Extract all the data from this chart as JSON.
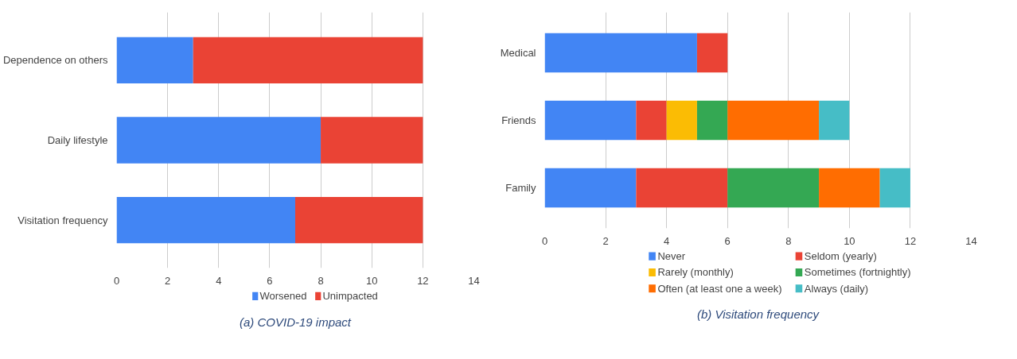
{
  "chart_data": [
    {
      "type": "bar",
      "orientation": "horizontal",
      "stacked": true,
      "categories": [
        "Dependence on others",
        "Daily lifestyle",
        "Visitation frequency"
      ],
      "series": [
        {
          "name": "Worsened",
          "color": "#4285f4",
          "values": [
            3,
            8,
            7
          ]
        },
        {
          "name": "Unimpacted",
          "color": "#ea4335",
          "values": [
            9,
            4,
            5
          ]
        }
      ],
      "xlim": [
        0,
        14
      ],
      "xticks": [
        0,
        2,
        4,
        6,
        8,
        10,
        12,
        14
      ],
      "grid": "x",
      "legend": "bottom",
      "annotations": [
        "(a) COVID-19 impact"
      ]
    },
    {
      "type": "bar",
      "orientation": "horizontal",
      "stacked": true,
      "categories": [
        "Medical",
        "Friends",
        "Family"
      ],
      "series": [
        {
          "name": "Never",
          "color": "#4285f4",
          "values": [
            5,
            3,
            3
          ]
        },
        {
          "name": "Seldom (yearly)",
          "color": "#ea4335",
          "values": [
            1,
            1,
            3
          ]
        },
        {
          "name": "Rarely (monthly)",
          "color": "#fbbc04",
          "values": [
            0,
            1,
            0
          ]
        },
        {
          "name": "Sometimes (fortnightly)",
          "color": "#34a853",
          "values": [
            0,
            1,
            3
          ]
        },
        {
          "name": "Often (at least one a week)",
          "color": "#ff6d01",
          "values": [
            0,
            3,
            2
          ]
        },
        {
          "name": "Always (daily)",
          "color": "#46bdc6",
          "values": [
            0,
            1,
            1
          ]
        }
      ],
      "xlim": [
        0,
        14
      ],
      "xticks": [
        0,
        2,
        4,
        6,
        8,
        10,
        12,
        14
      ],
      "grid": "x",
      "legend": "bottom",
      "annotations": [
        "(b) Visitation frequency"
      ]
    }
  ]
}
